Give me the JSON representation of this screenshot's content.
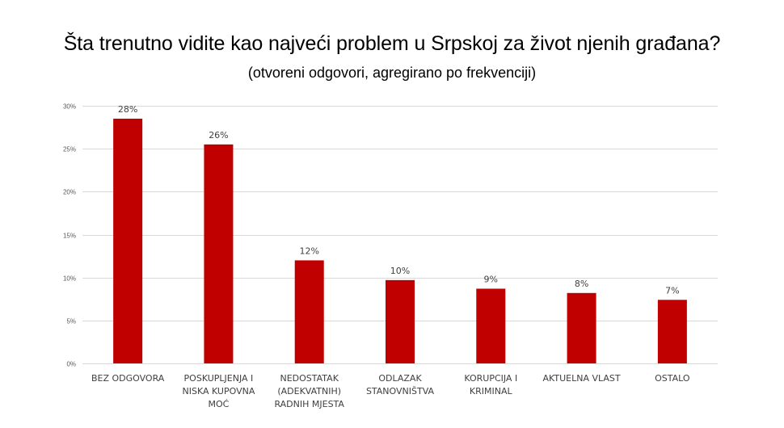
{
  "chart_data": {
    "type": "bar",
    "title": "Šta trenutno vidite kao najveći problem u Srpskoj za život njenih građana?",
    "subtitle": "(otvoreni odgovori, agregirano po frekvenciji)",
    "categories": [
      [
        "BEZ ODGOVORA"
      ],
      [
        "POSKUPLJENJA I",
        "NISKA KUPOVNA",
        "MOĆ"
      ],
      [
        "NEDOSTATAK",
        "(ADEKVATNIH)",
        "RADNIH MJESTA"
      ],
      [
        "ODLAZAK",
        "STANOVNIŠTVA"
      ],
      [
        "KORUPCIJA I",
        "KRIMINAL"
      ],
      [
        "AKTUELNA VLAST"
      ],
      [
        "OSTALO"
      ]
    ],
    "values": [
      28.5,
      25.5,
      12,
      9.7,
      8.7,
      8.2,
      7.4
    ],
    "data_labels": [
      "28%",
      "26%",
      "12%",
      "10%",
      "9%",
      "8%",
      "7%"
    ],
    "ylim": [
      0,
      30
    ],
    "yticks": [
      0,
      5,
      10,
      15,
      20,
      25,
      30
    ],
    "ytick_labels": [
      "0%",
      "5%",
      "10%",
      "15%",
      "20%",
      "25%",
      "30%"
    ],
    "bar_color": "#c00000",
    "grid": true,
    "legend": "none"
  }
}
